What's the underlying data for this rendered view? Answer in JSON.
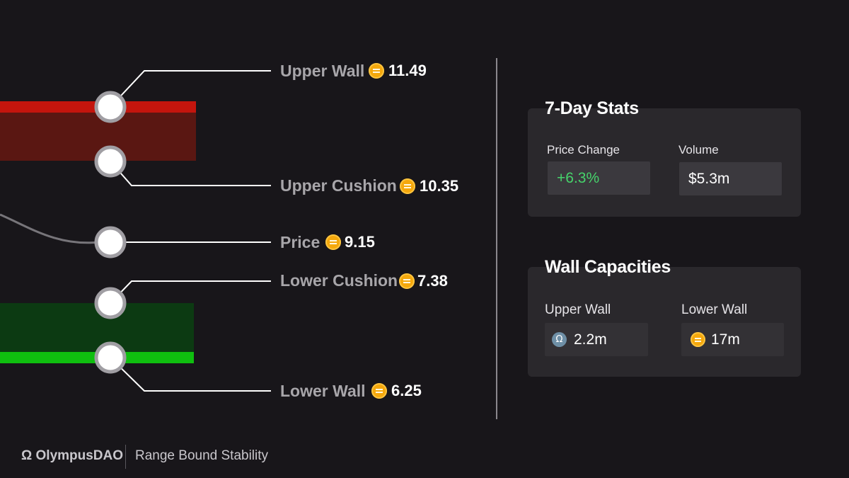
{
  "levels": [
    {
      "label": "Upper Wall",
      "value": "11.49"
    },
    {
      "label": "Upper Cushion",
      "value": "10.35"
    },
    {
      "label": "Price",
      "value": "9.15"
    },
    {
      "label": "Lower Cushion",
      "value": "7.38"
    },
    {
      "label": "Lower Wall",
      "value": "6.25"
    }
  ],
  "stats": {
    "title": "7-Day Stats",
    "price_change_label": "Price Change",
    "price_change_value": "+6.3%",
    "volume_label": "Volume",
    "volume_value": "$5.3m"
  },
  "capacities": {
    "title": "Wall Capacities",
    "upper_label": "Upper Wall",
    "upper_value": "2.2m",
    "lower_label": "Lower Wall",
    "lower_value": "17m"
  },
  "footer": {
    "logo": "Ω OlympusDAO",
    "subtitle": "Range Bound Stability"
  },
  "colors": {
    "upper_band": "#5a1712",
    "upper_line": "#c4150d",
    "lower_band": "#0c3a12",
    "lower_line": "#0fbf0f",
    "price_change_positive": "#46d36b"
  },
  "icons": [
    "coin-icon",
    "omega-icon"
  ]
}
